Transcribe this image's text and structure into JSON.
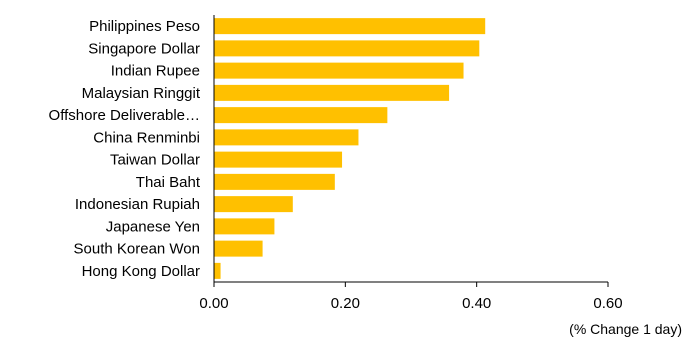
{
  "chart_data": {
    "type": "bar",
    "orientation": "horizontal",
    "categories": [
      "Philippines Peso",
      "Singapore Dollar",
      "Indian Rupee",
      "Malaysian Ringgit",
      "Offshore Deliverable…",
      "China Renminbi",
      "Taiwan Dollar",
      "Thai Baht",
      "Indonesian Rupiah",
      "Japanese Yen",
      "South Korean Won",
      "Hong Kong Dollar"
    ],
    "values": [
      0.413,
      0.404,
      0.38,
      0.358,
      0.264,
      0.22,
      0.195,
      0.184,
      0.12,
      0.092,
      0.074,
      0.01
    ],
    "xlim": [
      0,
      0.6
    ],
    "xticks": [
      0,
      0.2,
      0.4,
      0.6
    ],
    "xtick_labels": [
      "0.00",
      "0.20",
      "0.40",
      "0.60"
    ],
    "xlabel": "(% Change 1 day)",
    "title": "",
    "bar_color": "#FFC000",
    "grid": false
  }
}
